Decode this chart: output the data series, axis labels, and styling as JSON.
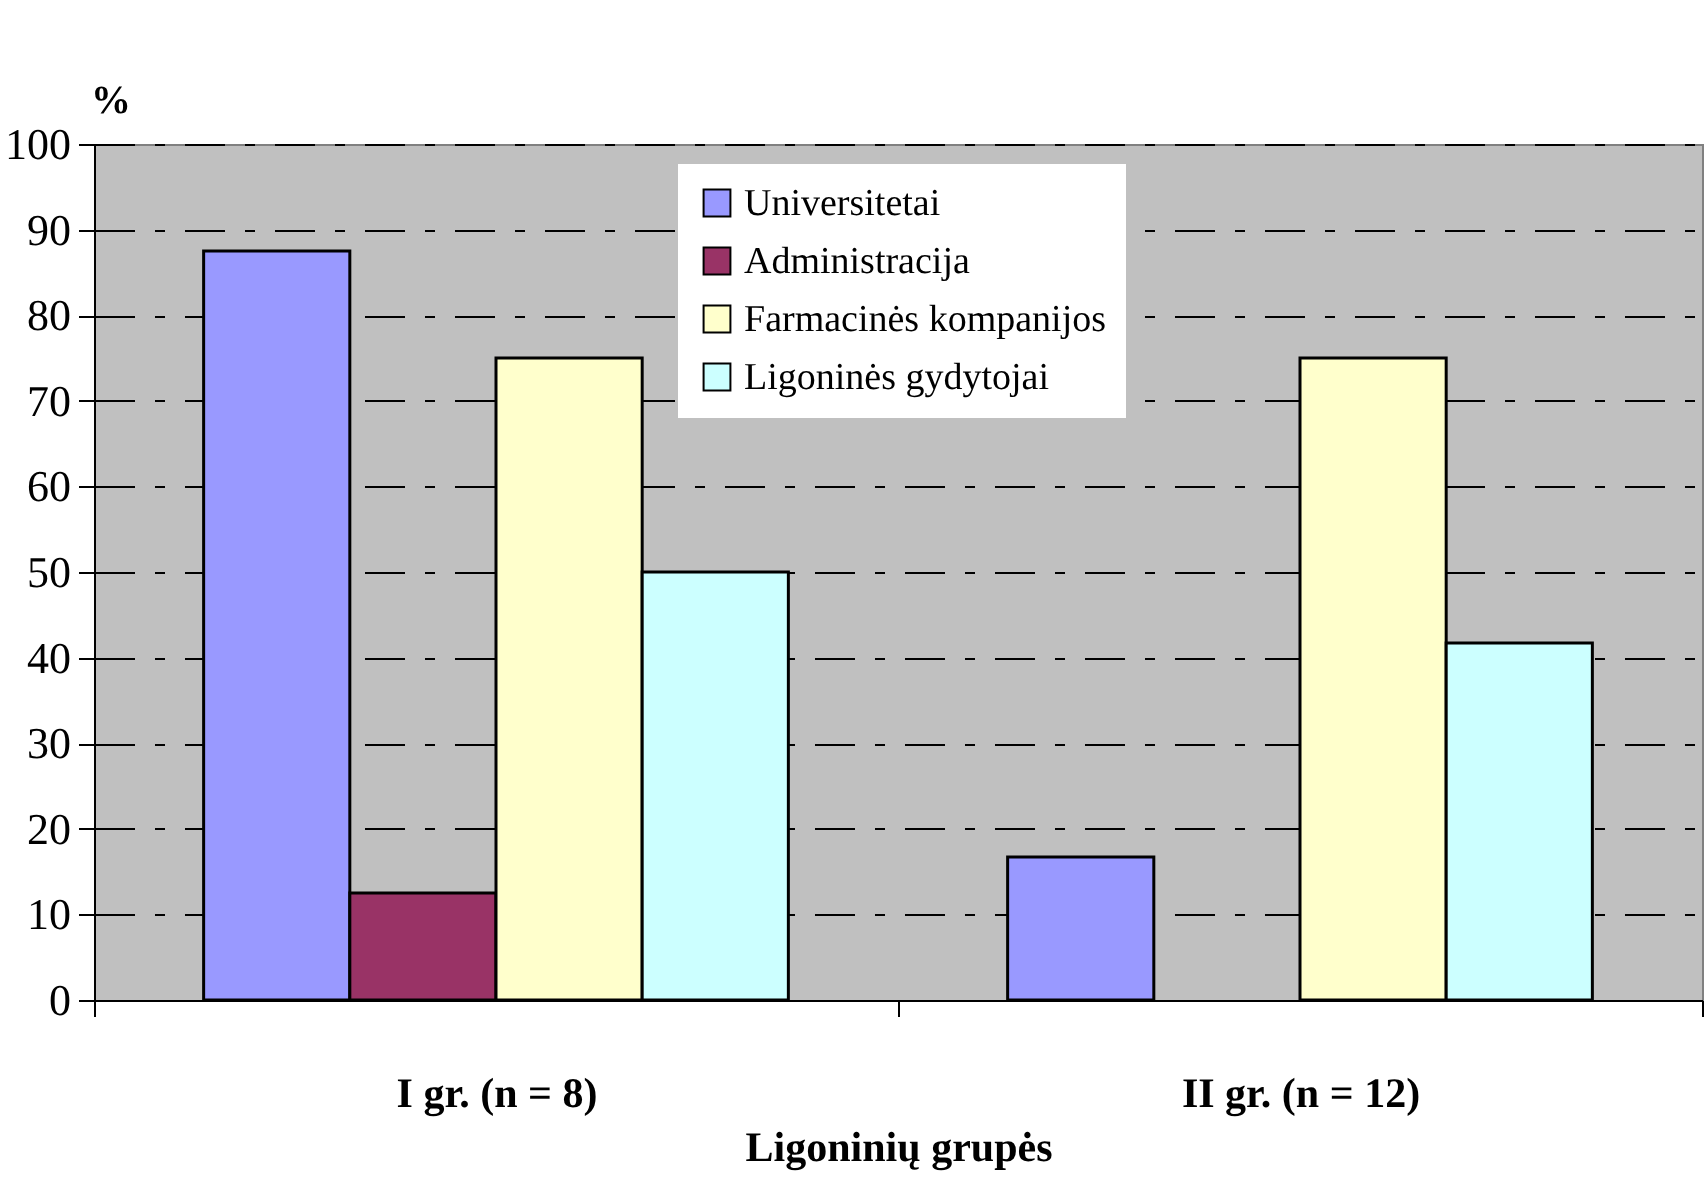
{
  "chart_data": {
    "type": "bar",
    "xlabel": "Ligoninių grupės",
    "ylabel": "%",
    "categories": [
      "I gr. (n = 8)",
      "II gr. (n = 12)"
    ],
    "series": [
      {
        "name": "Universitetai",
        "color": "#9999ff",
        "values": [
          87.5,
          16.7
        ]
      },
      {
        "name": "Administracija",
        "color": "#993366",
        "values": [
          12.5,
          null
        ]
      },
      {
        "name": "Farmacinės kompanijos",
        "color": "#ffffcc",
        "values": [
          75,
          75
        ]
      },
      {
        "name": "Ligoninės gydytojai",
        "color": "#ccffff",
        "values": [
          50,
          41.7
        ]
      }
    ],
    "ylim": [
      0,
      100
    ],
    "yticks": [
      0,
      10,
      20,
      30,
      40,
      50,
      60,
      70,
      80,
      90,
      100
    ],
    "grid": "y",
    "legend": "top"
  }
}
